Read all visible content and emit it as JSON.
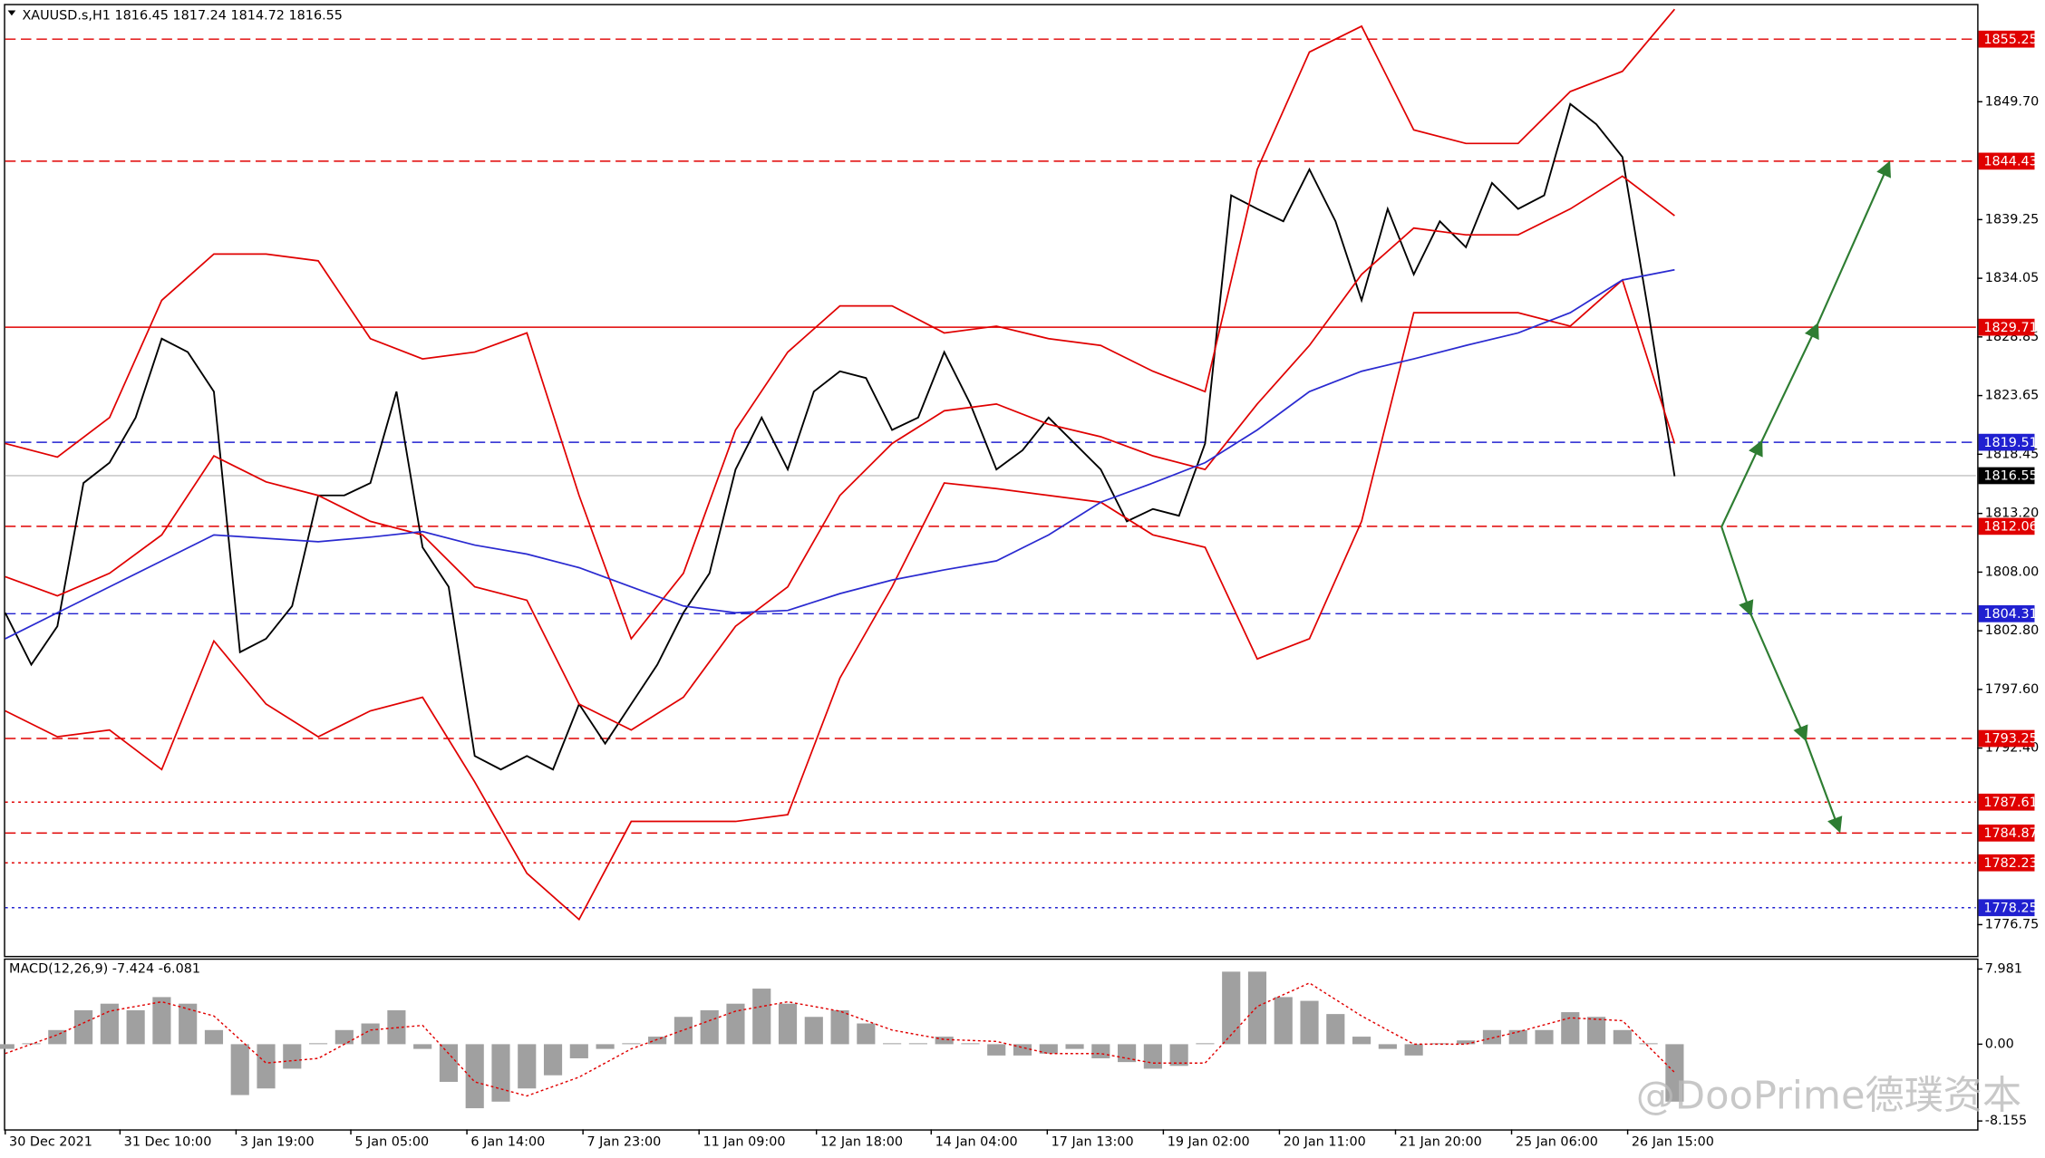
{
  "chart_data": [
    {
      "type": "line",
      "title": "XAUUSD.s,H1  1816.45 1817.24 1814.72 1816.55",
      "xlim": [
        0,
        75.55
      ],
      "ylim": [
        1773.98,
        1858.14
      ],
      "yticks": [
        {
          "value": 1849.7,
          "label": "1849.70"
        },
        1839.25,
        1834.05,
        1828.85,
        1823.65,
        1818.45,
        {
          "value": 1813.2,
          "label": "1813.20"
        },
        {
          "value": 1808,
          "label": "1808.00"
        },
        {
          "value": 1802.8,
          "label": "1802.80"
        },
        {
          "value": 1797.6,
          "label": "1797.60"
        },
        {
          "value": 1792.4,
          "label": "1792.40"
        },
        1776.75
      ],
      "series": [
        {
          "color": "#000000",
          "x": [
            0,
            1,
            2,
            3,
            4,
            5,
            6,
            7,
            8,
            9,
            10,
            11,
            12,
            13,
            14,
            15,
            16,
            17,
            18,
            19,
            20,
            21,
            22,
            23,
            24,
            25,
            26,
            27,
            28,
            29,
            30,
            31,
            32,
            33,
            34,
            35,
            36,
            37,
            38,
            39,
            40,
            41,
            42,
            43,
            44,
            45,
            46,
            47,
            48,
            49,
            50,
            51,
            52,
            53,
            54,
            55,
            56,
            57,
            58,
            59,
            60,
            61,
            62,
            63,
            64
          ],
          "values": [
            1804.4,
            1799.8,
            1803.2,
            1815.9,
            1817.7,
            1821.7,
            1828.7,
            1827.5,
            1824.0,
            1800.9,
            1802.1,
            1805.0,
            1814.8,
            1814.8,
            1815.9,
            1824.0,
            1810.2,
            1806.7,
            1791.7,
            1790.5,
            1791.7,
            1790.5,
            1796.3,
            1792.8,
            1796.3,
            1799.8,
            1804.4,
            1807.9,
            1817.1,
            1821.7,
            1817.1,
            1824.0,
            1825.8,
            1825.2,
            1820.6,
            1821.7,
            1827.5,
            1822.9,
            1817.1,
            1818.8,
            1821.7,
            1819.4,
            1817.1,
            1812.5,
            1813.6,
            1813.0,
            1819.4,
            1841.4,
            1840.2,
            1839.1,
            1843.7,
            1839.1,
            1832.1,
            1840.2,
            1834.4,
            1839.1,
            1836.8,
            1842.5,
            1840.2,
            1841.4,
            1849.5,
            1847.7,
            1844.8,
            1831.0,
            1816.5
          ]
        },
        {
          "color": "#e00000",
          "x": [
            0,
            2,
            4,
            6,
            8,
            10,
            12,
            14,
            16,
            18,
            20,
            22,
            24,
            26,
            28,
            30,
            32,
            34,
            36,
            38,
            40,
            42,
            44,
            46,
            48,
            50,
            52,
            54,
            56,
            58,
            60,
            62,
            64
          ],
          "values": [
            1819.4,
            1818.2,
            1821.7,
            1832.1,
            1836.2,
            1836.2,
            1835.6,
            1828.7,
            1826.9,
            1827.5,
            1829.2,
            1814.8,
            1802.1,
            1807.9,
            1820.6,
            1827.5,
            1831.6,
            1831.6,
            1829.2,
            1829.8,
            1828.7,
            1828.1,
            1825.8,
            1824.0,
            1843.7,
            1854.1,
            1856.4,
            1847.2,
            1846.0,
            1846.0,
            1850.6,
            1852.4,
            1857.9
          ]
        },
        {
          "color": "#e00000",
          "x": [
            0,
            2,
            4,
            6,
            8,
            10,
            12,
            14,
            16,
            18,
            20,
            22,
            24,
            26,
            28,
            30,
            32,
            34,
            36,
            38,
            40,
            42,
            44,
            46,
            48,
            50,
            52,
            54,
            56,
            58,
            60,
            62,
            64
          ],
          "values": [
            1807.6,
            1805.9,
            1807.9,
            1811.3,
            1818.3,
            1816.0,
            1814.8,
            1812.5,
            1811.3,
            1806.7,
            1805.5,
            1796.3,
            1794.0,
            1796.9,
            1803.2,
            1806.7,
            1814.8,
            1819.4,
            1822.3,
            1822.9,
            1821.1,
            1820.0,
            1818.3,
            1817.1,
            1822.9,
            1828.1,
            1834.4,
            1838.5,
            1837.9,
            1837.9,
            1840.2,
            1843.1,
            1839.6
          ]
        },
        {
          "color": "#e00000",
          "x": [
            0,
            2,
            4,
            6,
            8,
            10,
            12,
            14,
            16,
            18,
            20,
            22,
            24,
            26,
            28,
            30,
            32,
            34,
            36,
            38,
            40,
            42,
            44,
            46,
            48,
            50,
            52,
            54,
            56,
            58,
            60,
            62,
            64
          ],
          "values": [
            1795.7,
            1793.4,
            1794.0,
            1790.5,
            1801.9,
            1796.3,
            1793.4,
            1795.7,
            1796.9,
            1789.4,
            1781.3,
            1777.2,
            1785.9,
            1785.9,
            1785.9,
            1786.5,
            1798.6,
            1806.7,
            1815.9,
            1815.4,
            1814.8,
            1814.2,
            1811.3,
            1810.2,
            1800.3,
            1802.1,
            1812.5,
            1831.0,
            1831.0,
            1831.0,
            1829.8,
            1833.9,
            1819.4
          ]
        },
        {
          "color": "#2a2ad0",
          "x": [
            0,
            2,
            4,
            6,
            8,
            10,
            12,
            14,
            16,
            18,
            20,
            22,
            24,
            26,
            28,
            30,
            32,
            34,
            36,
            38,
            40,
            42,
            44,
            46,
            48,
            50,
            52,
            54,
            56,
            58,
            60,
            62,
            64
          ],
          "values": [
            1802.1,
            1804.4,
            1806.7,
            1809.0,
            1811.3,
            1811.0,
            1810.7,
            1811.1,
            1811.6,
            1810.4,
            1809.6,
            1808.4,
            1806.7,
            1805.0,
            1804.4,
            1804.6,
            1806.1,
            1807.3,
            1808.2,
            1809.0,
            1811.3,
            1814.2,
            1815.9,
            1817.7,
            1820.6,
            1824.0,
            1825.8,
            1826.9,
            1828.1,
            1829.2,
            1831.0,
            1833.9,
            1834.8
          ]
        }
      ],
      "levels": [
        {
          "value": 1855.25,
          "color": "#e00000",
          "style": "dashed"
        },
        {
          "value": 1844.43,
          "color": "#e00000",
          "style": "dashed"
        },
        {
          "value": 1829.71,
          "color": "#e00000",
          "style": "solid"
        },
        {
          "value": 1819.51,
          "color": "#2020d0",
          "style": "dashed"
        },
        {
          "value": 1812.06,
          "color": "#e00000",
          "style": "dashed"
        },
        {
          "value": 1804.31,
          "color": "#2020d0",
          "style": "dashed"
        },
        {
          "value": 1793.25,
          "color": "#e00000",
          "style": "dashed"
        },
        {
          "value": 1787.61,
          "color": "#e00000",
          "style": "dotted"
        },
        {
          "value": 1784.87,
          "color": "#e00000",
          "style": "dashed"
        },
        {
          "value": 1782.23,
          "color": "#e00000",
          "style": "dotted"
        },
        {
          "value": 1778.25,
          "color": "#2020d0",
          "style": "dotted"
        }
      ],
      "current": 1816.55
    },
    {
      "type": "bar",
      "title": "MACD(12,26,9) -7.424 -6.081",
      "xlim": [
        0,
        75.55
      ],
      "ylim": [
        -8.9,
        9.1
      ],
      "yticks": [
        7.981,
        {
          "value": 0,
          "label": "0.00"
        },
        -8.155
      ],
      "color": "#a0a0a0",
      "x": [
        0,
        1,
        2,
        3,
        4,
        5,
        6,
        7,
        8,
        9,
        10,
        11,
        12,
        13,
        14,
        15,
        16,
        17,
        18,
        19,
        20,
        21,
        22,
        23,
        24,
        25,
        26,
        27,
        28,
        29,
        30,
        31,
        32,
        33,
        34,
        35,
        36,
        37,
        38,
        39,
        40,
        41,
        42,
        43,
        44,
        45,
        46,
        47,
        48,
        49,
        50,
        51,
        52,
        53,
        54,
        55,
        56,
        57,
        58,
        59,
        60,
        61,
        62,
        63,
        64
      ],
      "values": [
        -0.5,
        0.1,
        1.5,
        3.6,
        4.3,
        3.6,
        5.0,
        4.3,
        1.5,
        -5.4,
        -4.7,
        -2.6,
        0.1,
        1.5,
        2.2,
        3.6,
        -0.5,
        -4.0,
        -6.8,
        -6.1,
        -4.7,
        -3.3,
        -1.5,
        -0.5,
        0.1,
        0.8,
        2.9,
        3.6,
        4.3,
        5.9,
        4.3,
        2.9,
        3.6,
        2.2,
        0.1,
        0.1,
        0.8,
        0.1,
        -1.2,
        -1.2,
        -1.0,
        -0.5,
        -1.5,
        -1.9,
        -2.6,
        -2.3,
        0.1,
        7.7,
        7.7,
        5.0,
        4.6,
        3.2,
        0.8,
        -0.5,
        -1.2,
        0.1,
        0.4,
        1.5,
        1.5,
        1.5,
        3.4,
        2.9,
        1.5,
        0.1,
        -6.1
      ],
      "signal": {
        "color": "#e00000",
        "x": [
          0,
          2,
          4,
          6,
          8,
          10,
          12,
          14,
          16,
          18,
          20,
          22,
          24,
          26,
          28,
          30,
          32,
          34,
          36,
          38,
          40,
          42,
          44,
          46,
          48,
          50,
          52,
          54,
          56,
          58,
          60,
          62,
          64
        ],
        "values": [
          -1.0,
          1.0,
          3.5,
          4.5,
          3.0,
          -2.0,
          -1.5,
          1.5,
          2.0,
          -4.0,
          -5.5,
          -3.5,
          -0.5,
          1.5,
          3.5,
          4.5,
          3.5,
          1.5,
          0.5,
          0.3,
          -1.0,
          -1.0,
          -2.0,
          -2.0,
          4.0,
          6.5,
          3.0,
          0.0,
          0.0,
          1.3,
          2.8,
          2.5,
          -3.0
        ]
      },
      "xticks": [
        {
          "value": 0,
          "label": "30 Dec 2021"
        },
        {
          "value": 4.4,
          "label": "31 Dec 10:00"
        },
        {
          "value": 8.85,
          "label": "3 Jan 19:00"
        },
        {
          "value": 13.25,
          "label": "5 Jan 05:00"
        },
        {
          "value": 17.7,
          "label": "6 Jan 14:00"
        },
        {
          "value": 22.15,
          "label": "7 Jan 23:00"
        },
        {
          "value": 26.6,
          "label": "11 Jan 09:00"
        },
        {
          "value": 31.1,
          "label": "12 Jan 18:00"
        },
        {
          "value": 35.5,
          "label": "14 Jan 04:00"
        },
        {
          "value": 39.95,
          "label": "17 Jan 13:00"
        },
        {
          "value": 44.4,
          "label": "19 Jan 02:00"
        },
        {
          "value": 48.85,
          "label": "20 Jan 11:00"
        },
        {
          "value": 53.3,
          "label": "21 Jan 20:00"
        },
        {
          "value": 57.75,
          "label": "25 Jan 06:00"
        },
        {
          "value": 62.2,
          "label": "26 Jan 15:00"
        }
      ],
      "annotation": "@DooPrime德璞资本"
    }
  ]
}
